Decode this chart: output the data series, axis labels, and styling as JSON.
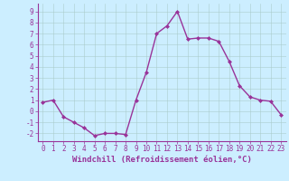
{
  "x": [
    0,
    1,
    2,
    3,
    4,
    5,
    6,
    7,
    8,
    9,
    10,
    11,
    12,
    13,
    14,
    15,
    16,
    17,
    18,
    19,
    20,
    21,
    22,
    23
  ],
  "y": [
    0.8,
    1.0,
    -0.5,
    -1.0,
    -1.5,
    -2.2,
    -2.0,
    -2.0,
    -2.1,
    1.0,
    3.5,
    7.0,
    7.7,
    9.0,
    6.5,
    6.6,
    6.6,
    6.3,
    4.5,
    2.3,
    1.3,
    1.0,
    0.9,
    -0.3
  ],
  "line_color": "#993399",
  "marker": "D",
  "marker_size": 2,
  "bg_color": "#cceeff",
  "plot_bg_color": "#cceeff",
  "grid_color": "#aacccc",
  "xlabel": "Windchill (Refroidissement éolien,°C)",
  "xlim": [
    -0.5,
    23.5
  ],
  "ylim": [
    -2.7,
    9.7
  ],
  "xticks": [
    0,
    1,
    2,
    3,
    4,
    5,
    6,
    7,
    8,
    9,
    10,
    11,
    12,
    13,
    14,
    15,
    16,
    17,
    18,
    19,
    20,
    21,
    22,
    23
  ],
  "yticks": [
    -2,
    -1,
    0,
    1,
    2,
    3,
    4,
    5,
    6,
    7,
    8,
    9
  ],
  "font_color": "#993399",
  "tick_fontsize": 5.5,
  "xlabel_fontsize": 6.5,
  "linewidth": 1.0
}
